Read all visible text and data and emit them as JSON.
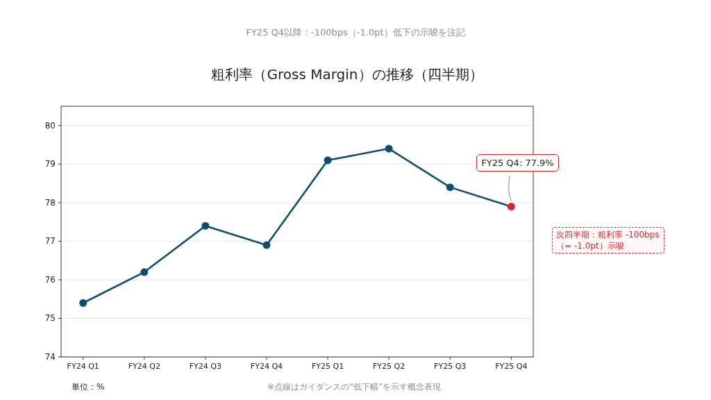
{
  "chart_data": {
    "type": "line",
    "title": "粗利率（Gross Margin）の推移（四半期）",
    "subtitle": "FY25 Q4以降：-100bps（-1.0pt）低下の示唆を注記",
    "categories": [
      "FY24 Q1",
      "FY24 Q2",
      "FY24 Q3",
      "FY24 Q4",
      "FY25 Q1",
      "FY25 Q2",
      "FY25 Q3",
      "FY25 Q4"
    ],
    "series": [
      {
        "color": "#0b4f6c",
        "colors": [
          "#0b4f6c",
          "#0b4f6c",
          "#0b4f6c",
          "#0b4f6c",
          "#0b4f6c",
          "#0b4f6c",
          "#0b4f6c",
          "#d62728"
        ],
        "values": [
          75.4,
          76.2,
          77.4,
          76.9,
          79.1,
          79.4,
          78.4,
          77.9
        ]
      }
    ],
    "ylim": [
      74,
      80.5
    ],
    "yticks": [
      74,
      75,
      76,
      77,
      78,
      79,
      80
    ],
    "grid": "y",
    "marker": "circle",
    "line_style": "solid",
    "annotations": [
      {
        "text": "FY25 Q4: 77.9%",
        "x": "FY25 Q4",
        "y": 77.9
      },
      "次四半期：粗利率 -100bps（= -1.0pt）示唆",
      "単位：%",
      "※点線はガイダンスの“低下幅”を示す概念表現"
    ]
  }
}
